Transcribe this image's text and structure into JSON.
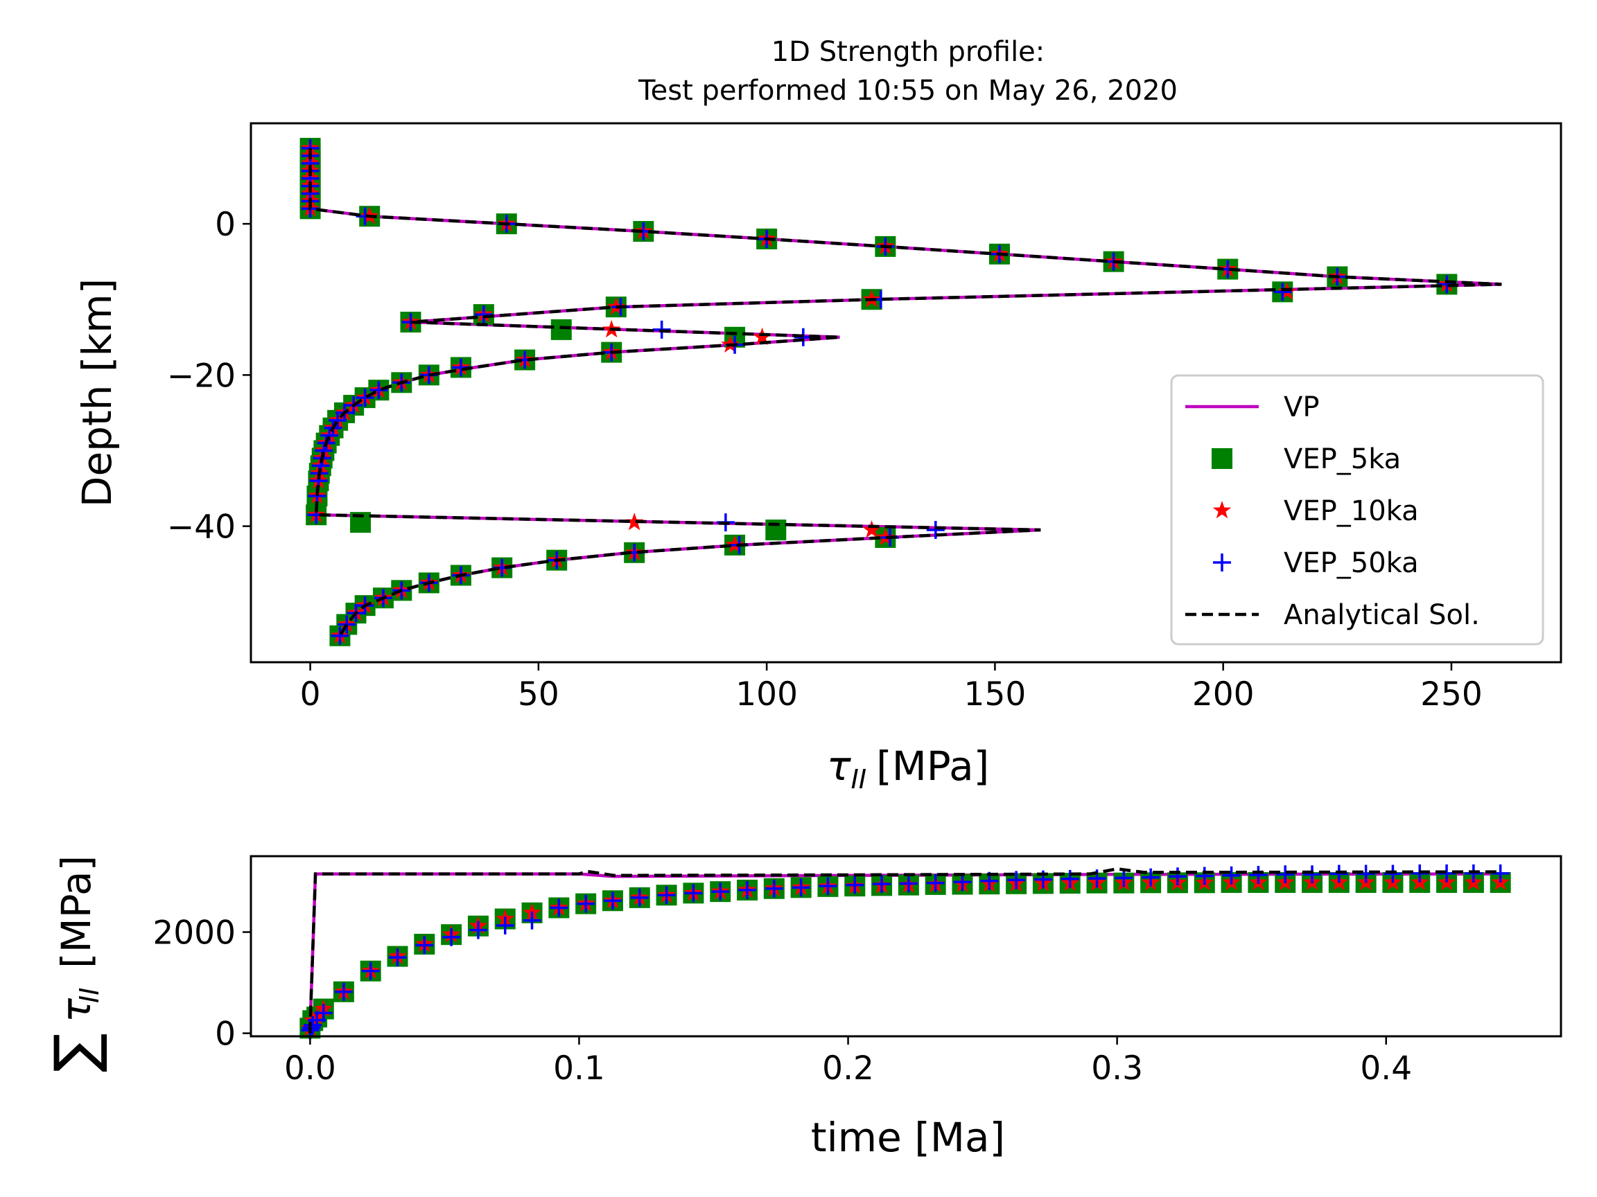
{
  "chart_data": [
    {
      "type": "line",
      "title": "1D Strength profile:\nTest performed 10:55 on May 26, 2020",
      "title_lines": [
        "1D Strength profile:",
        "Test performed 10:55 on May 26, 2020"
      ],
      "xlabel": "τ_II [MPa]",
      "xlabel_symbol": "τ",
      "xlabel_sub": "II",
      "xlabel_unit": "[MPa]",
      "ylabel": "Depth [km]",
      "xlim": [
        -13,
        274
      ],
      "ylim": [
        -58,
        13.3
      ],
      "xticks": [
        0,
        50,
        100,
        150,
        200,
        250
      ],
      "xtick_labels": [
        "0",
        "50",
        "100",
        "150",
        "200",
        "250"
      ],
      "yticks": [
        0,
        -20,
        -40
      ],
      "ytick_labels": [
        "0",
        "−20",
        "−40"
      ],
      "grid": false,
      "legend_position": "lower-right",
      "colors": {
        "VP": "#bf00bf",
        "VEP_5ka": "#008000",
        "VEP_10ka": "#ff0000",
        "VEP_50ka": "#0000ff",
        "Analytical Sol.": "#000000"
      },
      "series": [
        {
          "name": "VP",
          "kind": "line",
          "x": [
            0,
            0,
            0,
            0,
            0,
            0,
            0,
            0,
            0,
            0,
            13,
            43,
            73,
            100,
            126,
            151,
            176,
            201,
            225,
            261,
            124,
            67,
            22,
            116,
            93,
            66,
            47,
            36,
            26,
            20,
            15,
            12,
            9.5,
            7.5,
            6,
            5,
            4.2,
            3.5,
            3,
            2.6,
            2.3,
            2,
            1.8,
            1.5,
            1.3,
            160,
            126,
            94,
            70,
            54,
            42,
            33,
            26,
            20,
            16,
            12,
            10,
            8,
            6.5
          ],
          "y": [
            10,
            9,
            8,
            7,
            6,
            5,
            4,
            3,
            2,
            2,
            1,
            0,
            -1,
            -2,
            -3,
            -4,
            -5,
            -6,
            -7,
            -8,
            -10,
            -11,
            -13,
            -15,
            -16,
            -17,
            -18,
            -19,
            -20,
            -21,
            -22,
            -23,
            -24,
            -25,
            -26,
            -27,
            -28,
            -29,
            -30,
            -31,
            -32,
            -33,
            -34,
            -36,
            -38.5,
            -40.5,
            -41.5,
            -42.5,
            -43.5,
            -44.5,
            -45.5,
            -46.5,
            -47.5,
            -48.5,
            -49.5,
            -50.5,
            -51.5,
            -53,
            -54.5
          ]
        },
        {
          "name": "VEP_5ka",
          "kind": "marker",
          "x": [
            0,
            0,
            0,
            0,
            0,
            0,
            0,
            0,
            0,
            13,
            43,
            73,
            100,
            126,
            151,
            176,
            201,
            225,
            249,
            213,
            123,
            67,
            38,
            22,
            55,
            93,
            66,
            47,
            33,
            26,
            20,
            15,
            12,
            9.5,
            7.5,
            6,
            5,
            4.2,
            3.5,
            3,
            2.6,
            2.3,
            2,
            1.8,
            1.5,
            1.3,
            11,
            102,
            126,
            93,
            71,
            54,
            42,
            33,
            26,
            20,
            16,
            12,
            10,
            8,
            6.5
          ],
          "y": [
            10,
            9,
            8,
            7,
            6,
            5,
            4,
            3,
            2,
            1,
            0,
            -1,
            -2,
            -3,
            -4,
            -5,
            -6,
            -7,
            -8,
            -9,
            -10,
            -11,
            -12,
            -13,
            -14,
            -15,
            -17,
            -18,
            -19,
            -20,
            -21,
            -22,
            -23,
            -24,
            -25,
            -26,
            -27,
            -28,
            -29,
            -30,
            -31,
            -32,
            -33,
            -34,
            -36,
            -38.5,
            -39.5,
            -40.5,
            -41.5,
            -42.5,
            -43.5,
            -44.5,
            -45.5,
            -46.5,
            -47.5,
            -48.5,
            -49.5,
            -50.5,
            -51.5,
            -53,
            -54.5
          ]
        },
        {
          "name": "VEP_10ka",
          "kind": "marker",
          "x": [
            0,
            0,
            0,
            0,
            0,
            0,
            0,
            0,
            0,
            13,
            43,
            73,
            100,
            126,
            151,
            176,
            201,
            225,
            249,
            214,
            123,
            67,
            38,
            22,
            66,
            92,
            99,
            66,
            47,
            33,
            26,
            20,
            15,
            12,
            9.5,
            7.5,
            6,
            5,
            4.2,
            3.5,
            3,
            2.6,
            2.3,
            2,
            1.8,
            1.5,
            1.3,
            71,
            123,
            126,
            93,
            71,
            54,
            42,
            33,
            26,
            20,
            16,
            12,
            10,
            8,
            6.5
          ],
          "y": [
            10,
            9,
            8,
            7,
            6,
            5,
            4,
            3,
            2,
            1,
            0,
            -1,
            -2,
            -3,
            -4,
            -5,
            -6,
            -7,
            -8,
            -9,
            -10,
            -11,
            -12,
            -13,
            -14,
            -16,
            -15,
            -17,
            -18,
            -19,
            -20,
            -21,
            -22,
            -23,
            -24,
            -25,
            -26,
            -27,
            -28,
            -29,
            -30,
            -31,
            -32,
            -33,
            -34,
            -36,
            -38.5,
            -39.5,
            -40.5,
            -41.5,
            -42.5,
            -43.5,
            -44.5,
            -45.5,
            -46.5,
            -47.5,
            -48.5,
            -49.5,
            -50.5,
            -51.5,
            -53,
            -54.5
          ]
        },
        {
          "name": "VEP_50ka",
          "kind": "marker",
          "x": [
            0,
            0,
            0,
            0,
            0,
            0,
            0,
            0,
            0,
            12,
            43,
            73,
            100,
            126,
            151,
            176,
            201,
            225,
            249,
            213,
            125,
            68,
            38,
            22,
            77,
            108,
            93,
            66,
            47,
            33,
            26,
            20,
            15,
            12,
            9.5,
            7.5,
            6,
            5,
            4.2,
            3.5,
            3,
            2.6,
            2.3,
            2,
            1.8,
            1.5,
            1.3,
            91,
            137,
            127,
            94,
            71,
            54,
            42,
            33,
            26,
            20,
            16,
            12,
            10,
            8,
            6.5
          ],
          "y": [
            10,
            9,
            8,
            7,
            6,
            5,
            4,
            3,
            2,
            1,
            0,
            -1,
            -2,
            -3,
            -4,
            -5,
            -6,
            -7,
            -8,
            -9,
            -10,
            -11,
            -12,
            -13,
            -14,
            -15,
            -16,
            -17,
            -18,
            -19,
            -20,
            -21,
            -22,
            -23,
            -24,
            -25,
            -26,
            -27,
            -28,
            -29,
            -30,
            -31,
            -32,
            -33,
            -34,
            -36,
            -38.5,
            -39.5,
            -40.5,
            -41.5,
            -42.5,
            -43.5,
            -44.5,
            -45.5,
            -46.5,
            -47.5,
            -48.5,
            -49.5,
            -50.5,
            -51.5,
            -53,
            -54.5
          ]
        },
        {
          "name": "Analytical Sol.",
          "kind": "line",
          "x": [
            0,
            0,
            0,
            0,
            0,
            0,
            0,
            0,
            0,
            0,
            13,
            43,
            73,
            100,
            126,
            151,
            176,
            201,
            225,
            261,
            124,
            67,
            22,
            116,
            93,
            66,
            47,
            36,
            26,
            20,
            15,
            12,
            9.5,
            7.5,
            6,
            5,
            4.2,
            3.5,
            3,
            2.6,
            2.3,
            2,
            1.8,
            1.5,
            1.3,
            160,
            126,
            94,
            70,
            54,
            42,
            33,
            26,
            20,
            16,
            12,
            10,
            8,
            6.5
          ],
          "y": [
            10,
            9,
            8,
            7,
            6,
            5,
            4,
            3,
            2,
            2,
            1,
            0,
            -1,
            -2,
            -3,
            -4,
            -5,
            -6,
            -7,
            -8,
            -10,
            -11,
            -13,
            -15,
            -16,
            -17,
            -18,
            -19,
            -20,
            -21,
            -22,
            -23,
            -24,
            -25,
            -26,
            -27,
            -28,
            -29,
            -30,
            -31,
            -32,
            -33,
            -34,
            -36,
            -38.5,
            -40.5,
            -41.5,
            -42.5,
            -43.5,
            -44.5,
            -45.5,
            -46.5,
            -47.5,
            -48.5,
            -49.5,
            -50.5,
            -51.5,
            -53,
            -54.5
          ]
        }
      ]
    },
    {
      "type": "line",
      "xlabel": "time [Ma]",
      "ylabel": "∑τ_II [MPa]",
      "ylabel_sum": "∑",
      "ylabel_symbol": "τ",
      "ylabel_sub": "II",
      "ylabel_unit": "[MPa]",
      "xlim": [
        -0.022,
        0.465
      ],
      "ylim": [
        -60,
        3500
      ],
      "xticks": [
        0.0,
        0.1,
        0.2,
        0.3,
        0.4
      ],
      "xtick_labels": [
        "0.0",
        "0.1",
        "0.2",
        "0.3",
        "0.4"
      ],
      "yticks": [
        0,
        2000
      ],
      "ytick_labels": [
        "0",
        "2000"
      ],
      "grid": false,
      "series": [
        {
          "name": "VP",
          "kind": "line",
          "x": [
            0,
            0,
            0.002,
            0.1,
            0.113,
            0.2,
            0.3,
            0.443
          ],
          "y": [
            0,
            150,
            3150,
            3150,
            3100,
            3120,
            3140,
            3150
          ]
        },
        {
          "name": "Analytical Sol.",
          "kind": "line",
          "x": [
            0,
            0,
            0.002,
            0.1,
            0.103,
            0.113,
            0.2,
            0.29,
            0.3,
            0.31,
            0.443
          ],
          "y": [
            0,
            150,
            3150,
            3150,
            3200,
            3120,
            3130,
            3150,
            3250,
            3180,
            3190
          ]
        },
        {
          "name": "VEP_5ka",
          "kind": "marker",
          "x": [
            0,
            0.001,
            0.0025,
            0.005,
            0.0125,
            0.0225,
            0.0325,
            0.0425,
            0.0525,
            0.0625,
            0.0725,
            0.0825,
            0.0925,
            0.1025,
            0.1125,
            0.1225,
            0.1325,
            0.1425,
            0.1525,
            0.1625,
            0.1725,
            0.1825,
            0.1925,
            0.2025,
            0.2125,
            0.2225,
            0.2325,
            0.2425,
            0.2525,
            0.2625,
            0.2725,
            0.2825,
            0.2925,
            0.3025,
            0.3125,
            0.3225,
            0.3325,
            0.3425,
            0.3525,
            0.3625,
            0.3725,
            0.3825,
            0.3925,
            0.4025,
            0.4125,
            0.4225,
            0.4325,
            0.4425
          ],
          "y": [
            100,
            250,
            320,
            480,
            820,
            1230,
            1520,
            1760,
            1950,
            2120,
            2260,
            2380,
            2480,
            2560,
            2620,
            2680,
            2730,
            2770,
            2800,
            2830,
            2860,
            2880,
            2900,
            2910,
            2920,
            2930,
            2940,
            2945,
            2950,
            2955,
            2960,
            2965,
            2970,
            2970,
            2975,
            2975,
            2975,
            2980,
            2980,
            2980,
            2980,
            2980,
            2980,
            2980,
            2980,
            2980,
            2980,
            2980
          ]
        },
        {
          "name": "VEP_10ka",
          "kind": "marker",
          "x": [
            0,
            0.001,
            0.0025,
            0.005,
            0.0125,
            0.0225,
            0.0325,
            0.0425,
            0.0525,
            0.0625,
            0.0725,
            0.0825,
            0.0925,
            0.1025,
            0.1125,
            0.1225,
            0.1325,
            0.1425,
            0.1525,
            0.1625,
            0.1725,
            0.1825,
            0.1925,
            0.2025,
            0.2125,
            0.2225,
            0.2325,
            0.2425,
            0.2525,
            0.2625,
            0.2725,
            0.2825,
            0.2925,
            0.3025,
            0.3125,
            0.3225,
            0.3325,
            0.3425,
            0.3525,
            0.3625,
            0.3725,
            0.3825,
            0.3925,
            0.4025,
            0.4125,
            0.4225,
            0.4325,
            0.4425
          ],
          "y": [
            100,
            250,
            320,
            480,
            820,
            1230,
            1520,
            1760,
            1950,
            2120,
            2260,
            2380,
            2480,
            2560,
            2620,
            2680,
            2730,
            2770,
            2800,
            2830,
            2860,
            2880,
            2900,
            2910,
            2920,
            2930,
            2940,
            2945,
            2950,
            2955,
            2960,
            2965,
            2970,
            2970,
            2975,
            2975,
            2975,
            2980,
            2980,
            2980,
            2980,
            2980,
            2980,
            2980,
            2980,
            2980,
            2980,
            2980
          ]
        },
        {
          "name": "VEP_50ka",
          "kind": "marker",
          "x": [
            0,
            0.0005,
            0.001,
            0.0025,
            0.005,
            0.0125,
            0.0225,
            0.0325,
            0.0425,
            0.0525,
            0.0625,
            0.0725,
            0.0825,
            0.0925,
            0.1025,
            0.1125,
            0.1225,
            0.1325,
            0.1425,
            0.1525,
            0.1625,
            0.1725,
            0.1825,
            0.1925,
            0.2025,
            0.2125,
            0.2225,
            0.2325,
            0.2425,
            0.2525,
            0.2625,
            0.2725,
            0.2825,
            0.2925,
            0.3025,
            0.3125,
            0.3225,
            0.3325,
            0.3425,
            0.3525,
            0.3625,
            0.3725,
            0.3825,
            0.3925,
            0.4025,
            0.4125,
            0.4225,
            0.4325,
            0.4425
          ],
          "y": [
            60,
            110,
            160,
            260,
            400,
            820,
            1230,
            1500,
            1740,
            1900,
            2040,
            2130,
            2230,
            2480,
            2560,
            2620,
            2680,
            2730,
            2770,
            2800,
            2830,
            2860,
            2880,
            2910,
            2930,
            2950,
            2960,
            2970,
            2990,
            3010,
            3030,
            3040,
            3050,
            3060,
            3070,
            3080,
            3100,
            3110,
            3120,
            3130,
            3140,
            3140,
            3150,
            3150,
            3150,
            3160,
            3160,
            3160,
            3160
          ]
        }
      ]
    }
  ],
  "legend": {
    "entries": [
      {
        "label": "VP",
        "kind": "line",
        "color": "#bf00bf"
      },
      {
        "label": "VEP_5ka",
        "kind": "square",
        "color": "#008000"
      },
      {
        "label": "VEP_10ka",
        "kind": "star",
        "color": "#ff0000"
      },
      {
        "label": "VEP_50ka",
        "kind": "plus",
        "color": "#0000ff"
      },
      {
        "label": "Analytical Sol.",
        "kind": "dashed",
        "color": "#000000"
      }
    ]
  }
}
